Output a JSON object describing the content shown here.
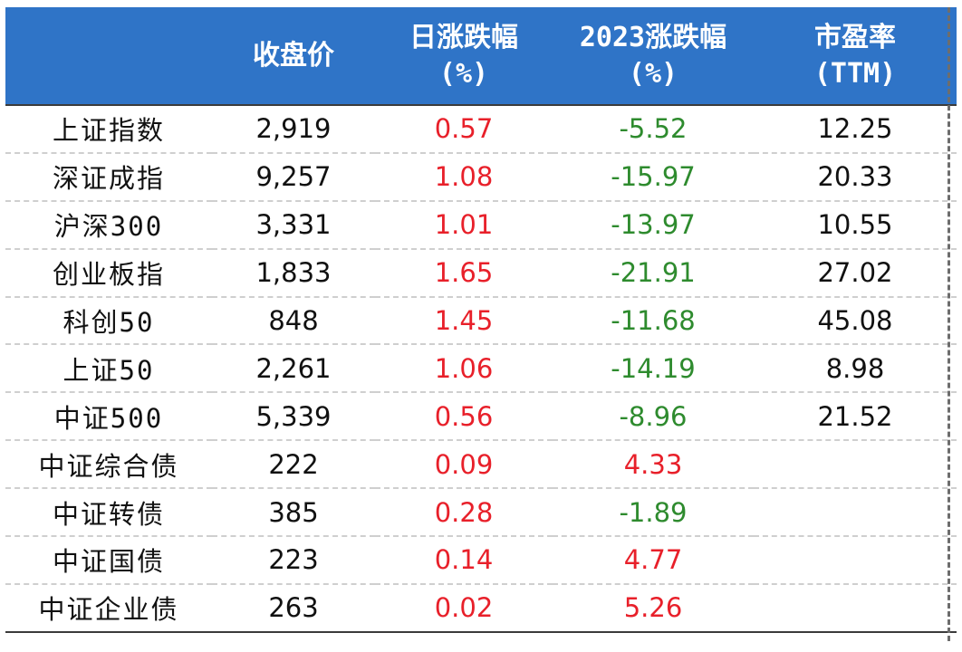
{
  "header": {
    "col0": "",
    "col1": "收盘价",
    "col2_line1": "日涨跌幅",
    "col2_line2": "(%)",
    "col3_line1": "2023涨跌幅",
    "col3_line2": "(%)",
    "col4_line1": "市盈率",
    "col4_line2": "(TTM)"
  },
  "colors": {
    "header_bg": "#2f74c7",
    "positive": "#e8202a",
    "negative": "#2e8b2e"
  },
  "rows": [
    {
      "name": "上证指数",
      "close": "2,919",
      "day": "0.57",
      "ytd": "-5.52",
      "pe": "12.25"
    },
    {
      "name": "深证成指",
      "close": "9,257",
      "day": "1.08",
      "ytd": "-15.97",
      "pe": "20.33"
    },
    {
      "name": "沪深300",
      "close": "3,331",
      "day": "1.01",
      "ytd": "-13.97",
      "pe": "10.55"
    },
    {
      "name": "创业板指",
      "close": "1,833",
      "day": "1.65",
      "ytd": "-21.91",
      "pe": "27.02"
    },
    {
      "name": "科创50",
      "close": "848",
      "day": "1.45",
      "ytd": "-11.68",
      "pe": "45.08"
    },
    {
      "name": "上证50",
      "close": "2,261",
      "day": "1.06",
      "ytd": "-14.19",
      "pe": "8.98"
    },
    {
      "name": "中证500",
      "close": "5,339",
      "day": "0.56",
      "ytd": "-8.96",
      "pe": "21.52"
    },
    {
      "name": "中证综合债",
      "close": "222",
      "day": "0.09",
      "ytd": "4.33",
      "pe": ""
    },
    {
      "name": "中证转债",
      "close": "385",
      "day": "0.28",
      "ytd": "-1.89",
      "pe": ""
    },
    {
      "name": "中证国债",
      "close": "223",
      "day": "0.14",
      "ytd": "4.77",
      "pe": ""
    },
    {
      "name": "中证企业债",
      "close": "263",
      "day": "0.02",
      "ytd": "5.26",
      "pe": ""
    }
  ]
}
